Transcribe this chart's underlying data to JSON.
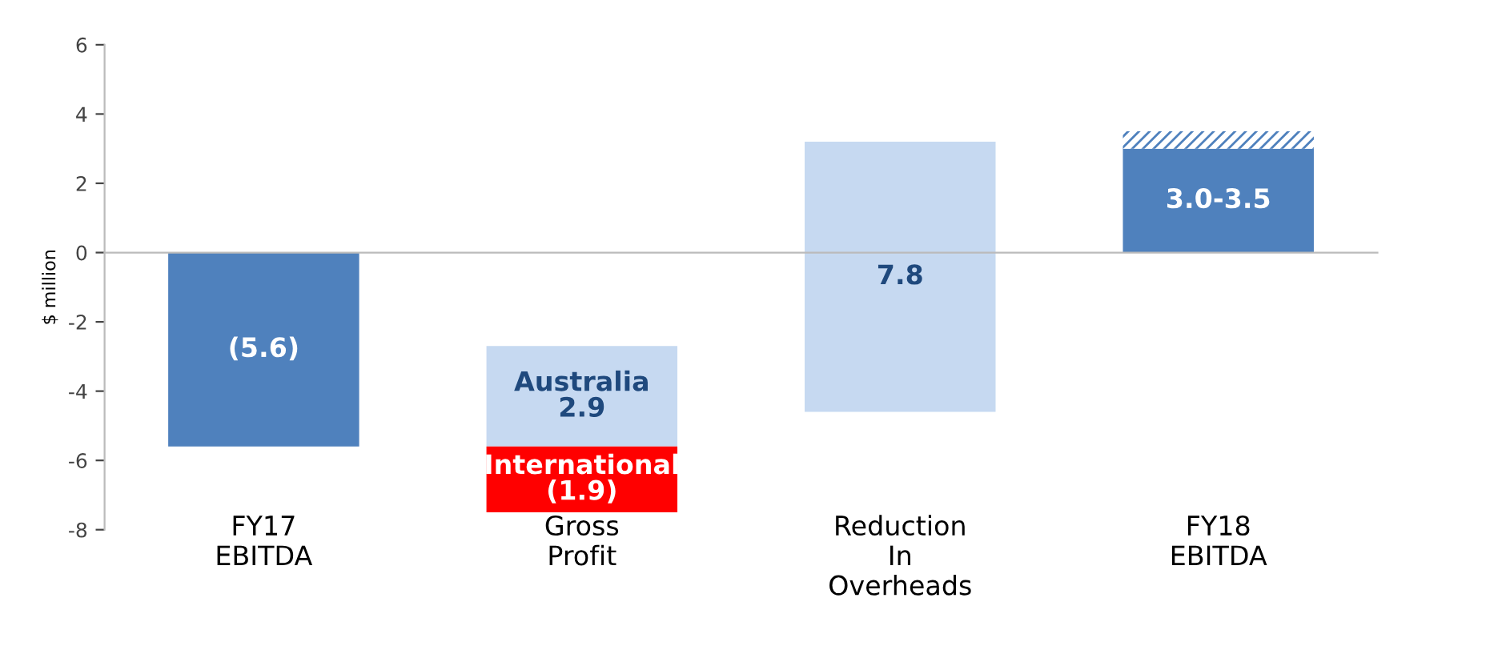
{
  "chart_data": {
    "type": "bar",
    "ylabel": "$ million",
    "categories": [
      "FY17\nEBITDA",
      "Gross\nProfit",
      "Reduction\nIn\nOverheads",
      "FY18\nEBITDA"
    ],
    "series": [
      {
        "color": "#4f81bd",
        "values": [
          -5.6,
          null,
          null,
          3.0
        ],
        "base": [
          0,
          null,
          null,
          0
        ],
        "value_labels": [
          "(5.6)",
          null,
          null,
          "3.0-3.5"
        ]
      },
      {
        "color": "#c6d9f1",
        "values": [
          null,
          2.9,
          7.8,
          null
        ],
        "base": [
          null,
          -5.6,
          -4.6,
          null
        ],
        "value_labels": [
          null,
          "Australia\n2.9",
          "7.8",
          null
        ]
      },
      {
        "color": "#ff0000",
        "values": [
          null,
          -1.9,
          null,
          null
        ],
        "base": [
          null,
          -5.6,
          null,
          null
        ],
        "value_labels": [
          null,
          "International\n(1.9)",
          null,
          null
        ]
      },
      {
        "color": "#4f81bd",
        "values": [
          null,
          null,
          null,
          0.5
        ],
        "base": [
          null,
          null,
          null,
          3.0
        ]
      }
    ],
    "ylim": [
      -8,
      6
    ],
    "yticks": [
      -8,
      -6,
      -4,
      -2,
      0,
      2,
      4,
      6
    ]
  }
}
